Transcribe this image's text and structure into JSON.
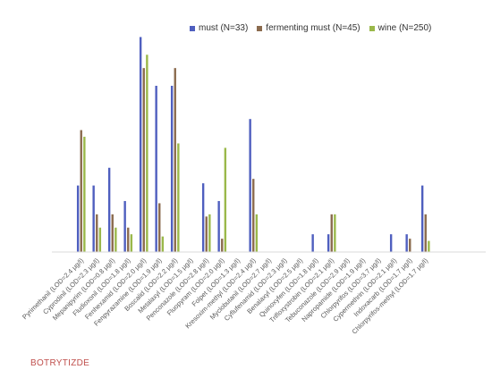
{
  "footnote": "BOTRYTIZDE",
  "chart_data": {
    "type": "bar",
    "title": "",
    "xlabel": "",
    "ylabel": "",
    "ylim": [
      0,
      100
    ],
    "grid": false,
    "legend_position": "top-right",
    "categories": [
      "Pyrimethanil (LOD=2.4 μg/l)",
      "Cyprodinil (LOD=2.3 μg/l)",
      "Mepanipyrim (LOD=0.8 μg/l)",
      "Fludioxonil (LOD=1.8 μg/l)",
      "Fenhexamid (LOD=2.0 μg/l)",
      "Fenpyrazamine (LOD=1.9 μg/l)",
      "Boscalid (LOD=2.2 μg/l)",
      "Metalaxyl (LOD=1.5 μg/l)",
      "Penconazole (LOD=2.8 μg/l)",
      "Fluopyram (LOD=2.0 μg/l)",
      "Folpet (LOD=1.3 μg/l)",
      "Kresoxim-methyl (LOD=2.4 μg/l)",
      "Myclobutanil (LOD=2.7 μg/l)",
      "Cyflufenamid (LOD=2.3 μg/l)",
      "Benalaxyl (LOD=2.5 μg/l)",
      "Quinoxyfen (LOD=1.8 μg/l)",
      "Trifloxystrobin (LOD=2.1 μg/l)",
      "Tebuconazole (LOD=2.9 μg/l)",
      "Napropamide (LOD=1.9 μg/l)",
      "Chlorpyrifos (LOD=3.7 μg/l)",
      "Cypermethrin (LOD=2.1 μg/l)",
      "Indoxacarb (LOD=1.7 μg/l)",
      "Chlorpyrifos-methyl (LOD=1.7 μg/l)"
    ],
    "series": [
      {
        "name": "must (N=33)",
        "color": "#4f5fbf",
        "values": [
          30,
          30,
          38,
          23,
          97,
          75,
          75,
          0,
          31,
          23,
          0,
          60,
          0,
          0,
          0,
          8,
          8,
          0,
          0,
          0,
          8,
          8,
          30
        ]
      },
      {
        "name": "fermenting must (N=45)",
        "color": "#8b6b4e",
        "values": [
          55,
          17,
          17,
          11,
          83,
          22,
          83,
          0,
          16,
          6,
          0,
          33,
          0,
          0,
          0,
          0,
          17,
          0,
          0,
          0,
          0,
          6,
          17
        ]
      },
      {
        "name": "wine (N=250)",
        "color": "#9ab84a",
        "values": [
          52,
          11,
          11,
          8,
          89,
          7,
          49,
          0,
          17,
          47,
          0,
          17,
          0,
          0,
          0,
          0,
          17,
          0,
          0,
          0,
          0,
          0,
          5
        ]
      }
    ]
  }
}
